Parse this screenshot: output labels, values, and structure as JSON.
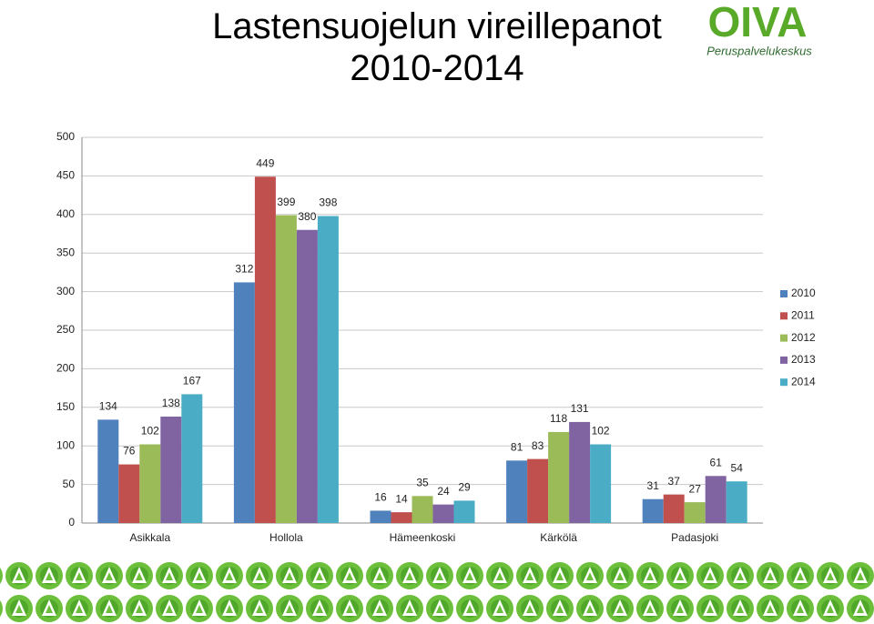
{
  "chart_data": {
    "type": "bar",
    "title": "Lastensuojelun vireillepanot 2010-2014",
    "categories": [
      "Asikkala",
      "Hollola",
      "Hämeenkoski",
      "Kärkölä",
      "Padasjoki"
    ],
    "series": [
      {
        "name": "2010",
        "color": "#4f81bd",
        "values": [
          134,
          312,
          16,
          81,
          31
        ]
      },
      {
        "name": "2011",
        "color": "#c0504d",
        "values": [
          76,
          449,
          14,
          83,
          37
        ]
      },
      {
        "name": "2012",
        "color": "#9bbb59",
        "values": [
          102,
          399,
          35,
          118,
          27
        ]
      },
      {
        "name": "2013",
        "color": "#8064a2",
        "values": [
          138,
          380,
          24,
          131,
          61
        ]
      },
      {
        "name": "2014",
        "color": "#4bacc6",
        "values": [
          167,
          398,
          29,
          102,
          54
        ]
      }
    ],
    "ylim": [
      0,
      500
    ],
    "yticks": [
      0,
      50,
      100,
      150,
      200,
      250,
      300,
      350,
      400,
      450,
      500
    ],
    "grid": true,
    "legend": "right"
  },
  "logo": {
    "name": "OIVA",
    "subtitle": "Peruspalvelukeskus"
  }
}
